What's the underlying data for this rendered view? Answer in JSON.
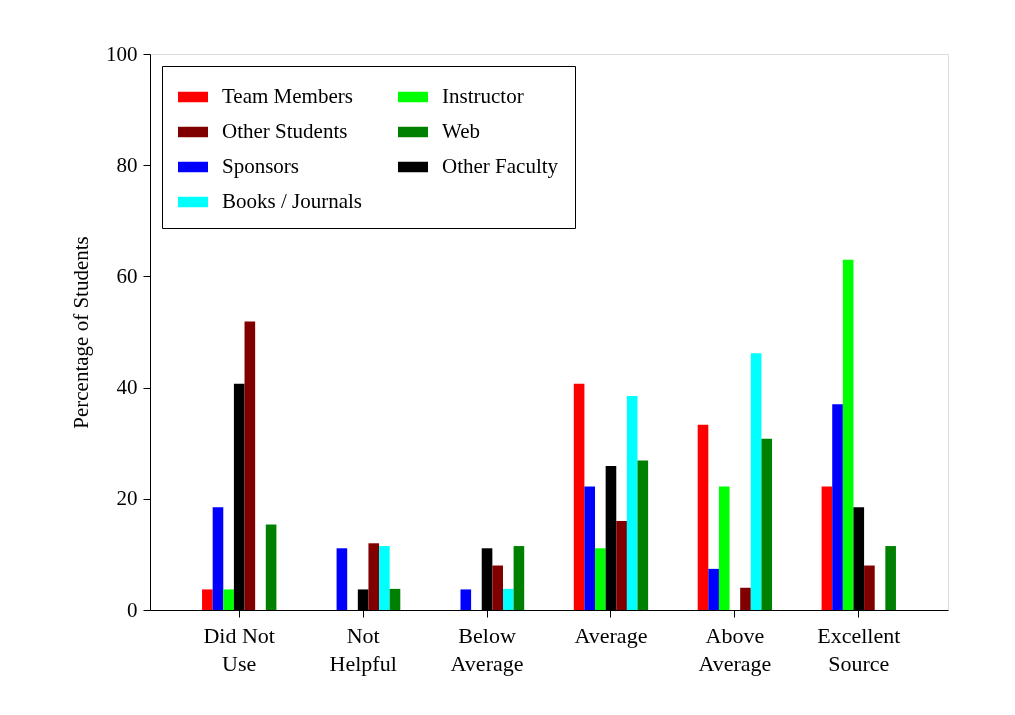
{
  "chart_data": {
    "type": "bar",
    "ylabel": "Percentage of Students",
    "categories": [
      "Did Not\nUse",
      "Not\nHelpful",
      "Below\nAverage",
      "Average",
      "Above\nAverage",
      "Excellent\nSource"
    ],
    "series": [
      {
        "name": "Team Members",
        "color": "#ff0000",
        "values": [
          3.7,
          0,
          0,
          40.7,
          33.3,
          22.2
        ]
      },
      {
        "name": "Sponsors",
        "color": "#0000ff",
        "values": [
          18.5,
          11.1,
          3.7,
          22.2,
          7.4,
          37.0
        ]
      },
      {
        "name": "Instructor",
        "color": "#00ff00",
        "values": [
          3.7,
          0,
          0,
          11.1,
          22.2,
          63.0
        ]
      },
      {
        "name": "Other Faculty",
        "color": "#000000",
        "values": [
          40.7,
          3.7,
          11.1,
          25.9,
          0,
          18.5
        ]
      },
      {
        "name": "Other Students",
        "color": "#800000",
        "values": [
          51.9,
          12.0,
          8.0,
          16.0,
          4.0,
          8.0
        ]
      },
      {
        "name": "Books / Journals",
        "color": "#00ffff",
        "values": [
          0,
          11.5,
          3.8,
          38.5,
          46.2,
          0
        ]
      },
      {
        "name": "Web",
        "color": "#008000",
        "values": [
          15.4,
          3.8,
          11.5,
          26.9,
          30.8,
          11.5
        ]
      }
    ],
    "ylim": [
      0,
      100
    ],
    "yticks": [
      0,
      20,
      40,
      60,
      80,
      100
    ],
    "grid": false,
    "legend": "top left"
  }
}
